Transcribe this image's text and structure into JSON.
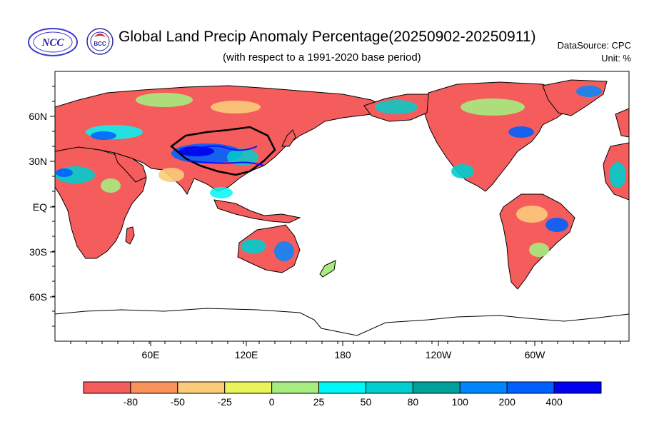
{
  "header": {
    "title": "Global Land Precip Anomaly Percentage(20250902-20250911)",
    "subtitle": "(with respect to a 1991-2020 base period)",
    "datasource": "DataSource:  CPC",
    "unit": "Unit:  %",
    "logos": [
      {
        "name": "NCC",
        "text": "NCC"
      },
      {
        "name": "BCC",
        "text": "BCC"
      }
    ]
  },
  "map": {
    "lat_range": [
      -90,
      90
    ],
    "lon_center": 180,
    "lat_ticks": [
      "60N",
      "30N",
      "EQ",
      "30S",
      "60S"
    ],
    "lon_ticks": [
      "60E",
      "120E",
      "180",
      "120W",
      "60W"
    ],
    "ocean_color": "#ffffff",
    "coastline_color": "#000000"
  },
  "colorbar": {
    "tick_labels": [
      "-80",
      "-50",
      "-25",
      "0",
      "25",
      "50",
      "80",
      "100",
      "200",
      "400"
    ],
    "colors": [
      "#f55c5c",
      "#f9925a",
      "#fbcb7a",
      "#e8f45a",
      "#a6ec7e",
      "#00f7f7",
      "#00cdcd",
      "#00a19a",
      "#0087ff",
      "#0060ff",
      "#0000ee"
    ]
  }
}
